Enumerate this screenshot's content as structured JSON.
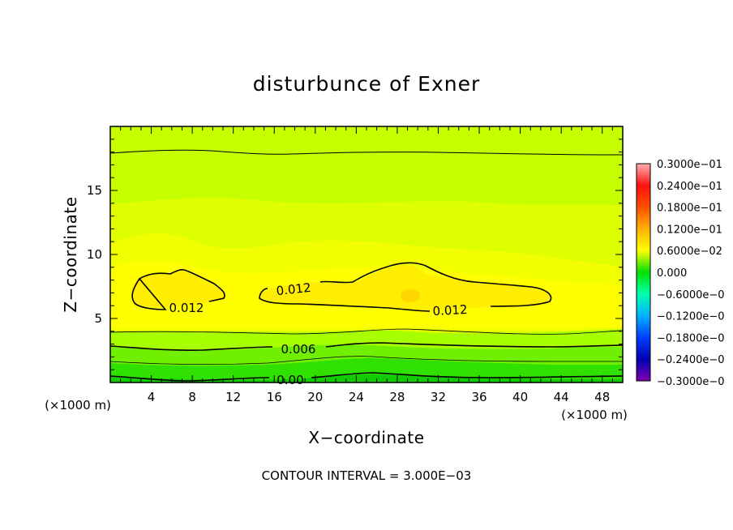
{
  "chart_data": {
    "type": "heatmap",
    "title": "disturbunce of Exner",
    "xlabel": "X−coordinate",
    "ylabel": "Z−coordinate",
    "x_unit": "(×1000 m)",
    "x_unit_right": "(×1000 m)",
    "footer": "CONTOUR INTERVAL = 3.000E−03",
    "xlim": [
      0,
      50
    ],
    "ylim": [
      0,
      20
    ],
    "x_ticks": [
      4,
      8,
      12,
      16,
      20,
      24,
      28,
      32,
      36,
      40,
      44,
      48
    ],
    "x_tick_labels": [
      "4",
      "8",
      "12",
      "16",
      "20",
      "24",
      "28",
      "32",
      "36",
      "40",
      "44",
      "48"
    ],
    "y_ticks": [
      5,
      10,
      15
    ],
    "y_tick_labels": [
      "5",
      "10",
      "15"
    ],
    "contour_interval": 0.003,
    "contour_labels": [
      {
        "text": "0.012",
        "x": 7.5,
        "z": 6.0
      },
      {
        "text": "0.012",
        "x": 17.5,
        "z": 7.4
      },
      {
        "text": "0.012",
        "x": 33.5,
        "z": 5.8
      },
      {
        "text": "0.006",
        "x": 18.5,
        "z": 2.7
      },
      {
        "text": "0.00",
        "x": 17.5,
        "z": 0.3
      }
    ],
    "colorbar": {
      "min": -0.03,
      "max": 0.03,
      "labels": [
        "0.3000e−01",
        "0.2400e−01",
        "0.1800e−01",
        "0.1200e−01",
        "0.6000e−02",
        "0.000",
        "−0.6000e−0",
        "−0.1200e−0",
        "−0.1800e−0",
        "−0.2400e−0",
        "−0.3000e−0"
      ],
      "values": [
        0.03,
        0.024,
        0.018,
        0.012,
        0.006,
        0.0,
        -0.006,
        -0.012,
        -0.018,
        -0.024,
        -0.03
      ],
      "colors": [
        "#ff9a9a",
        "#ff2020",
        "#ff6a00",
        "#ffc000",
        "#e8ff00",
        "#00e000",
        "#00ffa0",
        "#00c8ff",
        "#0060ff",
        "#0000c0",
        "#8000c0"
      ]
    }
  }
}
